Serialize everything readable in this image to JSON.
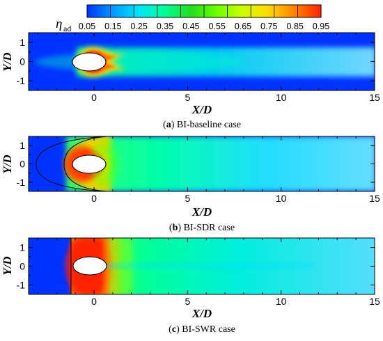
{
  "colorbar": {
    "symbol": "η",
    "subscript": "ad",
    "ticks": [
      "0.05",
      "0.15",
      "0.25",
      "0.35",
      "0.45",
      "0.55",
      "0.65",
      "0.75",
      "0.85",
      "0.95"
    ],
    "stops": [
      "#0033ff",
      "#0099ff",
      "#00e5ff",
      "#00ff99",
      "#22dd22",
      "#66ff00",
      "#ccff00",
      "#ffdd00",
      "#ff8800",
      "#ff2200"
    ]
  },
  "chart_data": [
    {
      "type": "heatmap",
      "caption_letter": "a",
      "caption_text": "BI-baseline case",
      "xlabel": "X/D",
      "ylabel": "Y/D",
      "xlim": [
        -3.5,
        15
      ],
      "ylim": [
        -1.5,
        1.5
      ],
      "x_ticks": [
        "0",
        "5",
        "10",
        "15"
      ],
      "y_ticks": [
        "1",
        "0",
        "-1"
      ],
      "colorbar_range": [
        0.05,
        0.95
      ]
    },
    {
      "type": "heatmap",
      "caption_letter": "b",
      "caption_text": "BI-SDR case",
      "xlabel": "X/D",
      "ylabel": "Y/D",
      "xlim": [
        -3.5,
        15
      ],
      "ylim": [
        -1.5,
        1.5
      ],
      "x_ticks": [
        "0",
        "5",
        "10",
        "15"
      ],
      "y_ticks": [
        "1",
        "0",
        "-1"
      ],
      "colorbar_range": [
        0.05,
        0.95
      ]
    },
    {
      "type": "heatmap",
      "caption_letter": "c",
      "caption_text": "BI-SWR case",
      "xlabel": "X/D",
      "ylabel": "Y/D",
      "xlim": [
        -3.5,
        15
      ],
      "ylim": [
        -1.5,
        1.5
      ],
      "x_ticks": [
        "0",
        "5",
        "10",
        "15"
      ],
      "y_ticks": [
        "1",
        "0",
        "-1"
      ],
      "colorbar_range": [
        0.05,
        0.95
      ]
    }
  ]
}
